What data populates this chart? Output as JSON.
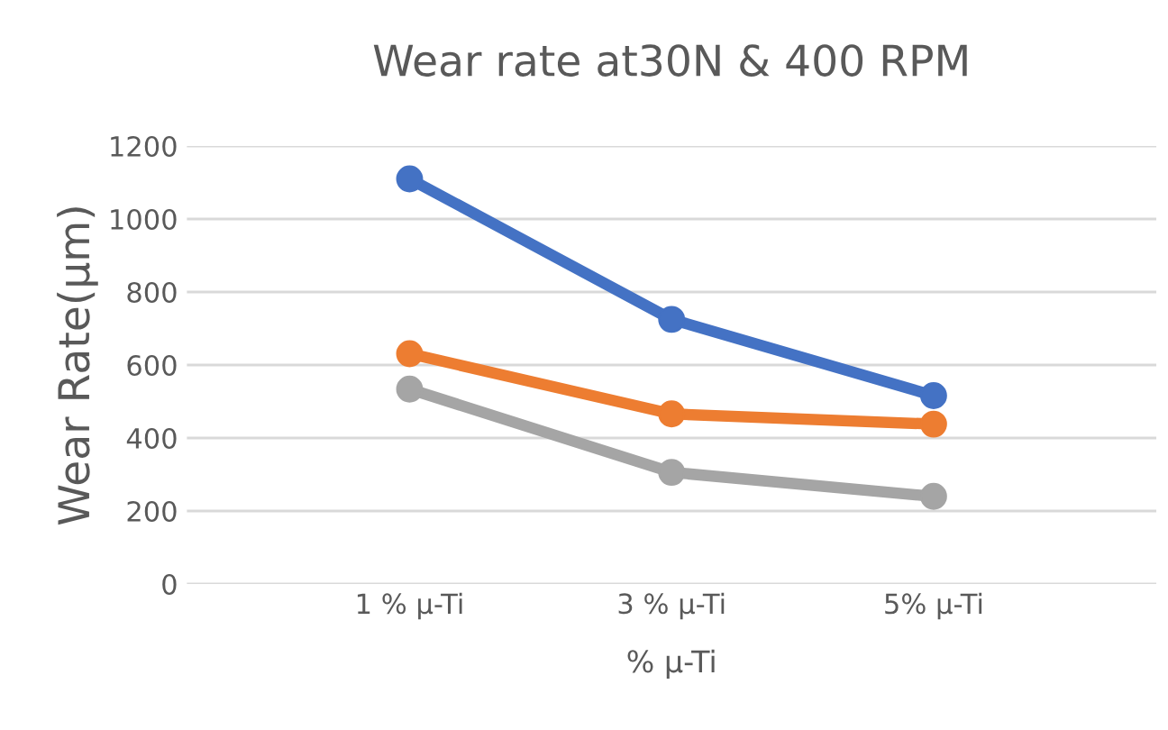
{
  "chart_data": {
    "type": "line",
    "title": "Wear rate at30N & 400 RPM",
    "xlabel": "% μ-Ti",
    "ylabel": "Wear Rate(µm)",
    "categories": [
      "1 % μ-Ti",
      "3 % μ-Ti",
      "5% μ-Ti"
    ],
    "series": [
      {
        "color": "#4472c4",
        "values": [
          1110,
          725,
          516
        ]
      },
      {
        "color": "#ed7d31",
        "values": [
          631,
          466,
          438
        ]
      },
      {
        "color": "#a5a5a5",
        "values": [
          534,
          306,
          240
        ]
      }
    ],
    "ylim": [
      0,
      1200
    ],
    "yticks": [
      0,
      200,
      400,
      600,
      800,
      1000,
      1200
    ],
    "grid": "y",
    "marker": "circle",
    "line_style": "solid"
  }
}
